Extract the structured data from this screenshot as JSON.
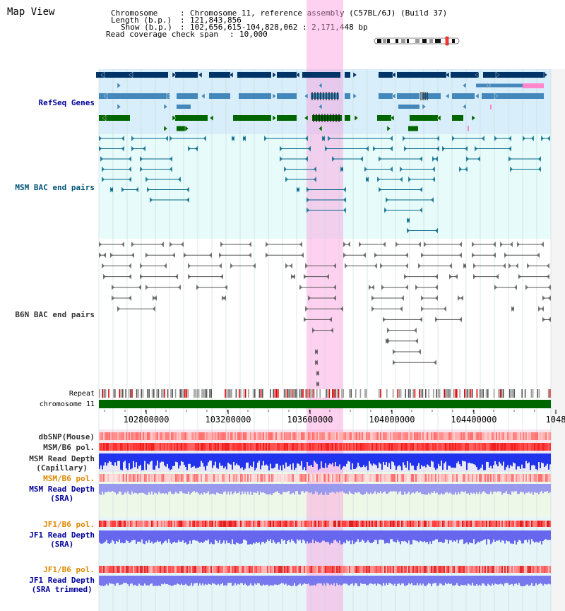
{
  "header": {
    "title": "Map View",
    "chromosome_label": "Chromosome",
    "chromosome_value": "Chromosome 11, reference assembly (C57BL/6J) (Build 37)",
    "length_label": "Length (b.p.)",
    "length_value": "121,843,856",
    "show_label": "Show (b.p.)",
    "show_value": "102,656,615-104,828,062 : 2,171,448 bp",
    "coverage_label": "Read coverage check span",
    "coverage_value": "10,000"
  },
  "tracks": {
    "refseq": "RefSeq Genes",
    "msm_bac": "MSM BAC end pairs",
    "b6n_bac": "B6N BAC end pairs",
    "repeat": "Repeat",
    "chromosome": "chromosome 11",
    "dbsnp": "dbSNP(Mouse)",
    "msm_b6_pol_1": "MSM/B6 pol.",
    "msm_depth_cap_1": "MSM Read Depth",
    "msm_depth_cap_2": "(Capillary)",
    "msm_b6_pol_2": "MSM/B6 pol.",
    "msm_depth_sra_1": "MSM Read Depth",
    "msm_depth_sra_2": "(SRA)",
    "jf1_pol_1": "JF1/B6 pol.",
    "jf1_depth_sra_1": "JF1 Read Depth",
    "jf1_depth_sra_2": "(SRA)",
    "jf1_pol_2": "JF1/B6 pol.",
    "jf1_depth_trim_1": "JF1 Read Depth",
    "jf1_depth_trim_2": "(SRA trimmed)"
  },
  "axis": {
    "ticks": [
      "102800000",
      "103200000",
      "103600000",
      "104000000",
      "104400000",
      "1048"
    ]
  },
  "colors": {
    "refseq_dark": "#003366",
    "refseq_mid": "#4488bb",
    "refseq_green": "#006600",
    "bac_msm": "#006688",
    "bac_b6n": "#555555",
    "highlight": "#ff99dd",
    "chromosome_bar": "#006600",
    "label_blue": "#000099",
    "label_orange": "#dd8800",
    "label_teal": "#005577"
  }
}
